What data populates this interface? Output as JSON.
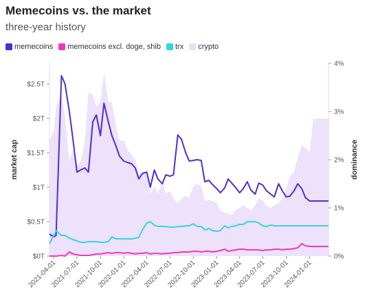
{
  "title": "Memecoins vs. the market",
  "subtitle": "three-year history",
  "legend": [
    {
      "name": "memecoins",
      "color": "#4d2ed4"
    },
    {
      "name": "memecoins excl. doge, shib",
      "color": "#f23ab7"
    },
    {
      "name": "trx",
      "color": "#35d6df"
    },
    {
      "name": "crypto",
      "color": "#eadcfa"
    }
  ],
  "chart_data": {
    "type": "line",
    "title": "Memecoins vs. the market",
    "subtitle": "three-year history",
    "x": [
      "2021-03-15",
      "2021-04-01",
      "2021-04-10",
      "2021-05-01",
      "2021-05-15",
      "2021-06-01",
      "2021-06-15",
      "2021-07-01",
      "2021-07-15",
      "2021-08-01",
      "2021-08-15",
      "2021-09-01",
      "2021-09-15",
      "2021-10-01",
      "2021-10-15",
      "2021-11-01",
      "2021-11-15",
      "2021-12-01",
      "2021-12-15",
      "2022-01-01",
      "2022-01-15",
      "2022-02-01",
      "2022-02-15",
      "2022-03-01",
      "2022-03-15",
      "2022-04-01",
      "2022-04-15",
      "2022-05-01",
      "2022-05-15",
      "2022-06-01",
      "2022-06-15",
      "2022-07-01",
      "2022-07-15",
      "2022-08-01",
      "2022-08-15",
      "2022-09-01",
      "2022-09-15",
      "2022-10-01",
      "2022-10-15",
      "2022-11-01",
      "2022-11-15",
      "2022-12-01",
      "2022-12-15",
      "2023-01-01",
      "2023-01-15",
      "2023-02-01",
      "2023-02-15",
      "2023-03-01",
      "2023-03-15",
      "2023-04-01",
      "2023-04-15",
      "2023-05-01",
      "2023-05-15",
      "2023-06-01",
      "2023-06-15",
      "2023-07-01",
      "2023-07-15",
      "2023-08-01",
      "2023-08-15",
      "2023-09-01",
      "2023-09-15",
      "2023-10-01",
      "2023-10-15",
      "2023-11-01",
      "2023-11-15",
      "2023-12-01",
      "2023-12-15",
      "2024-01-01",
      "2024-01-15",
      "2024-02-01",
      "2024-02-15",
      "2024-03-01",
      "2024-03-15"
    ],
    "series": [
      {
        "name": "memecoins",
        "axis": "left",
        "color": "#4d2ed4",
        "values": [
          0.32,
          0.28,
          0.3,
          2.62,
          2.5,
          2.1,
          1.7,
          1.22,
          1.25,
          1.28,
          1.22,
          1.95,
          2.05,
          1.75,
          2.22,
          1.95,
          1.75,
          1.6,
          1.45,
          1.38,
          1.36,
          1.34,
          1.28,
          1.12,
          1.2,
          1.22,
          1.0,
          1.25,
          1.12,
          1.05,
          1.18,
          1.16,
          1.18,
          1.76,
          1.7,
          1.5,
          1.38,
          1.39,
          1.4,
          1.39,
          1.08,
          1.1,
          1.04,
          0.98,
          0.92,
          0.99,
          1.12,
          1.06,
          1.0,
          0.92,
          0.98,
          1.08,
          0.96,
          0.9,
          1.06,
          1.03,
          0.95,
          0.9,
          0.86,
          1.05,
          0.95,
          0.86,
          0.87,
          0.95,
          1.05,
          0.98,
          0.85,
          0.8,
          0.8,
          0.8,
          0.8,
          0.8,
          0.8
        ]
      },
      {
        "name": "memecoins excl. doge, shib",
        "axis": "left",
        "color": "#f23ab7",
        "values": [
          0.0,
          0.0,
          0.0,
          0.01,
          0.0,
          0.06,
          0.03,
          0.02,
          0.01,
          0.01,
          0.01,
          0.02,
          0.03,
          0.03,
          0.04,
          0.05,
          0.04,
          0.05,
          0.05,
          0.04,
          0.05,
          0.04,
          0.03,
          0.04,
          0.04,
          0.05,
          0.03,
          0.04,
          0.04,
          0.03,
          0.04,
          0.04,
          0.05,
          0.05,
          0.06,
          0.06,
          0.06,
          0.07,
          0.07,
          0.06,
          0.07,
          0.07,
          0.06,
          0.07,
          0.08,
          0.1,
          0.07,
          0.08,
          0.09,
          0.1,
          0.1,
          0.09,
          0.09,
          0.09,
          0.09,
          0.08,
          0.09,
          0.09,
          0.1,
          0.1,
          0.09,
          0.1,
          0.1,
          0.11,
          0.12,
          0.18,
          0.15,
          0.14,
          0.14,
          0.14,
          0.14,
          0.14,
          0.14
        ]
      },
      {
        "name": "trx",
        "axis": "left",
        "color": "#35d6df",
        "values": [
          0.18,
          0.3,
          0.37,
          0.3,
          0.3,
          0.26,
          0.24,
          0.22,
          0.2,
          0.2,
          0.21,
          0.21,
          0.21,
          0.2,
          0.2,
          0.21,
          0.28,
          0.25,
          0.25,
          0.25,
          0.25,
          0.25,
          0.26,
          0.27,
          0.38,
          0.48,
          0.5,
          0.45,
          0.43,
          0.43,
          0.43,
          0.42,
          0.42,
          0.43,
          0.43,
          0.44,
          0.44,
          0.47,
          0.43,
          0.43,
          0.38,
          0.4,
          0.37,
          0.36,
          0.37,
          0.44,
          0.41,
          0.43,
          0.44,
          0.46,
          0.46,
          0.5,
          0.5,
          0.5,
          0.48,
          0.44,
          0.43,
          0.45,
          0.44,
          0.44,
          0.44,
          0.44,
          0.44,
          0.44,
          0.44,
          0.44,
          0.44,
          0.44,
          0.44,
          0.44,
          0.44,
          0.44,
          0.44
        ]
      },
      {
        "name": "crypto",
        "axis": "right",
        "type": "area",
        "color": "#eadcfa",
        "values": [
          2.4,
          2.6,
          3.1,
          3.35,
          2.9,
          1.98,
          2.2,
          1.9,
          1.95,
          2.4,
          3.4,
          3.35,
          3.1,
          3.2,
          3.8,
          3.2,
          3.2,
          2.7,
          2.4,
          2.4,
          2.2,
          2.1,
          2.0,
          1.7,
          1.72,
          1.7,
          1.3,
          1.45,
          1.3,
          1.55,
          1.3,
          1.35,
          1.2,
          1.1,
          1.2,
          1.25,
          1.2,
          1.45,
          1.5,
          1.45,
          1.15,
          1.17,
          1.15,
          1.1,
          0.95,
          0.9,
          0.88,
          0.85,
          0.95,
          1.0,
          1.05,
          1.0,
          0.95,
          1.05,
          1.2,
          1.15,
          1.05,
          1.0,
          1.05,
          1.1,
          1.2,
          1.4,
          1.65,
          1.75,
          2.05,
          2.3,
          2.25,
          2.15,
          2.85,
          2.85,
          2.85,
          2.85,
          2.85
        ]
      }
    ],
    "xlabel": "",
    "ylabel": "market cap",
    "ylabel_right": "dominance",
    "ylim": [
      0,
      2.8
    ],
    "ylim_right": [
      0,
      4
    ],
    "ytick_labels": [
      "$0T",
      "$0.5T",
      "$1T",
      "$1.5T",
      "$2T",
      "$2.5T"
    ],
    "ytick_values": [
      0,
      0.5,
      1,
      1.5,
      2,
      2.5
    ],
    "ytick_labels_right": [
      "0%",
      "1%",
      "2%",
      "3%",
      "4%"
    ],
    "ytick_values_right": [
      0,
      1,
      2,
      3,
      4
    ],
    "xtick_labels": [
      "2021-04-01",
      "2021-07-01",
      "2021-10-01",
      "2022-01-01",
      "2022-04-01",
      "2022-07-01",
      "2022-10-01",
      "2023-01-01",
      "2023-04-01",
      "2023-07-01",
      "2023-10-01",
      "2024-01-01"
    ]
  }
}
